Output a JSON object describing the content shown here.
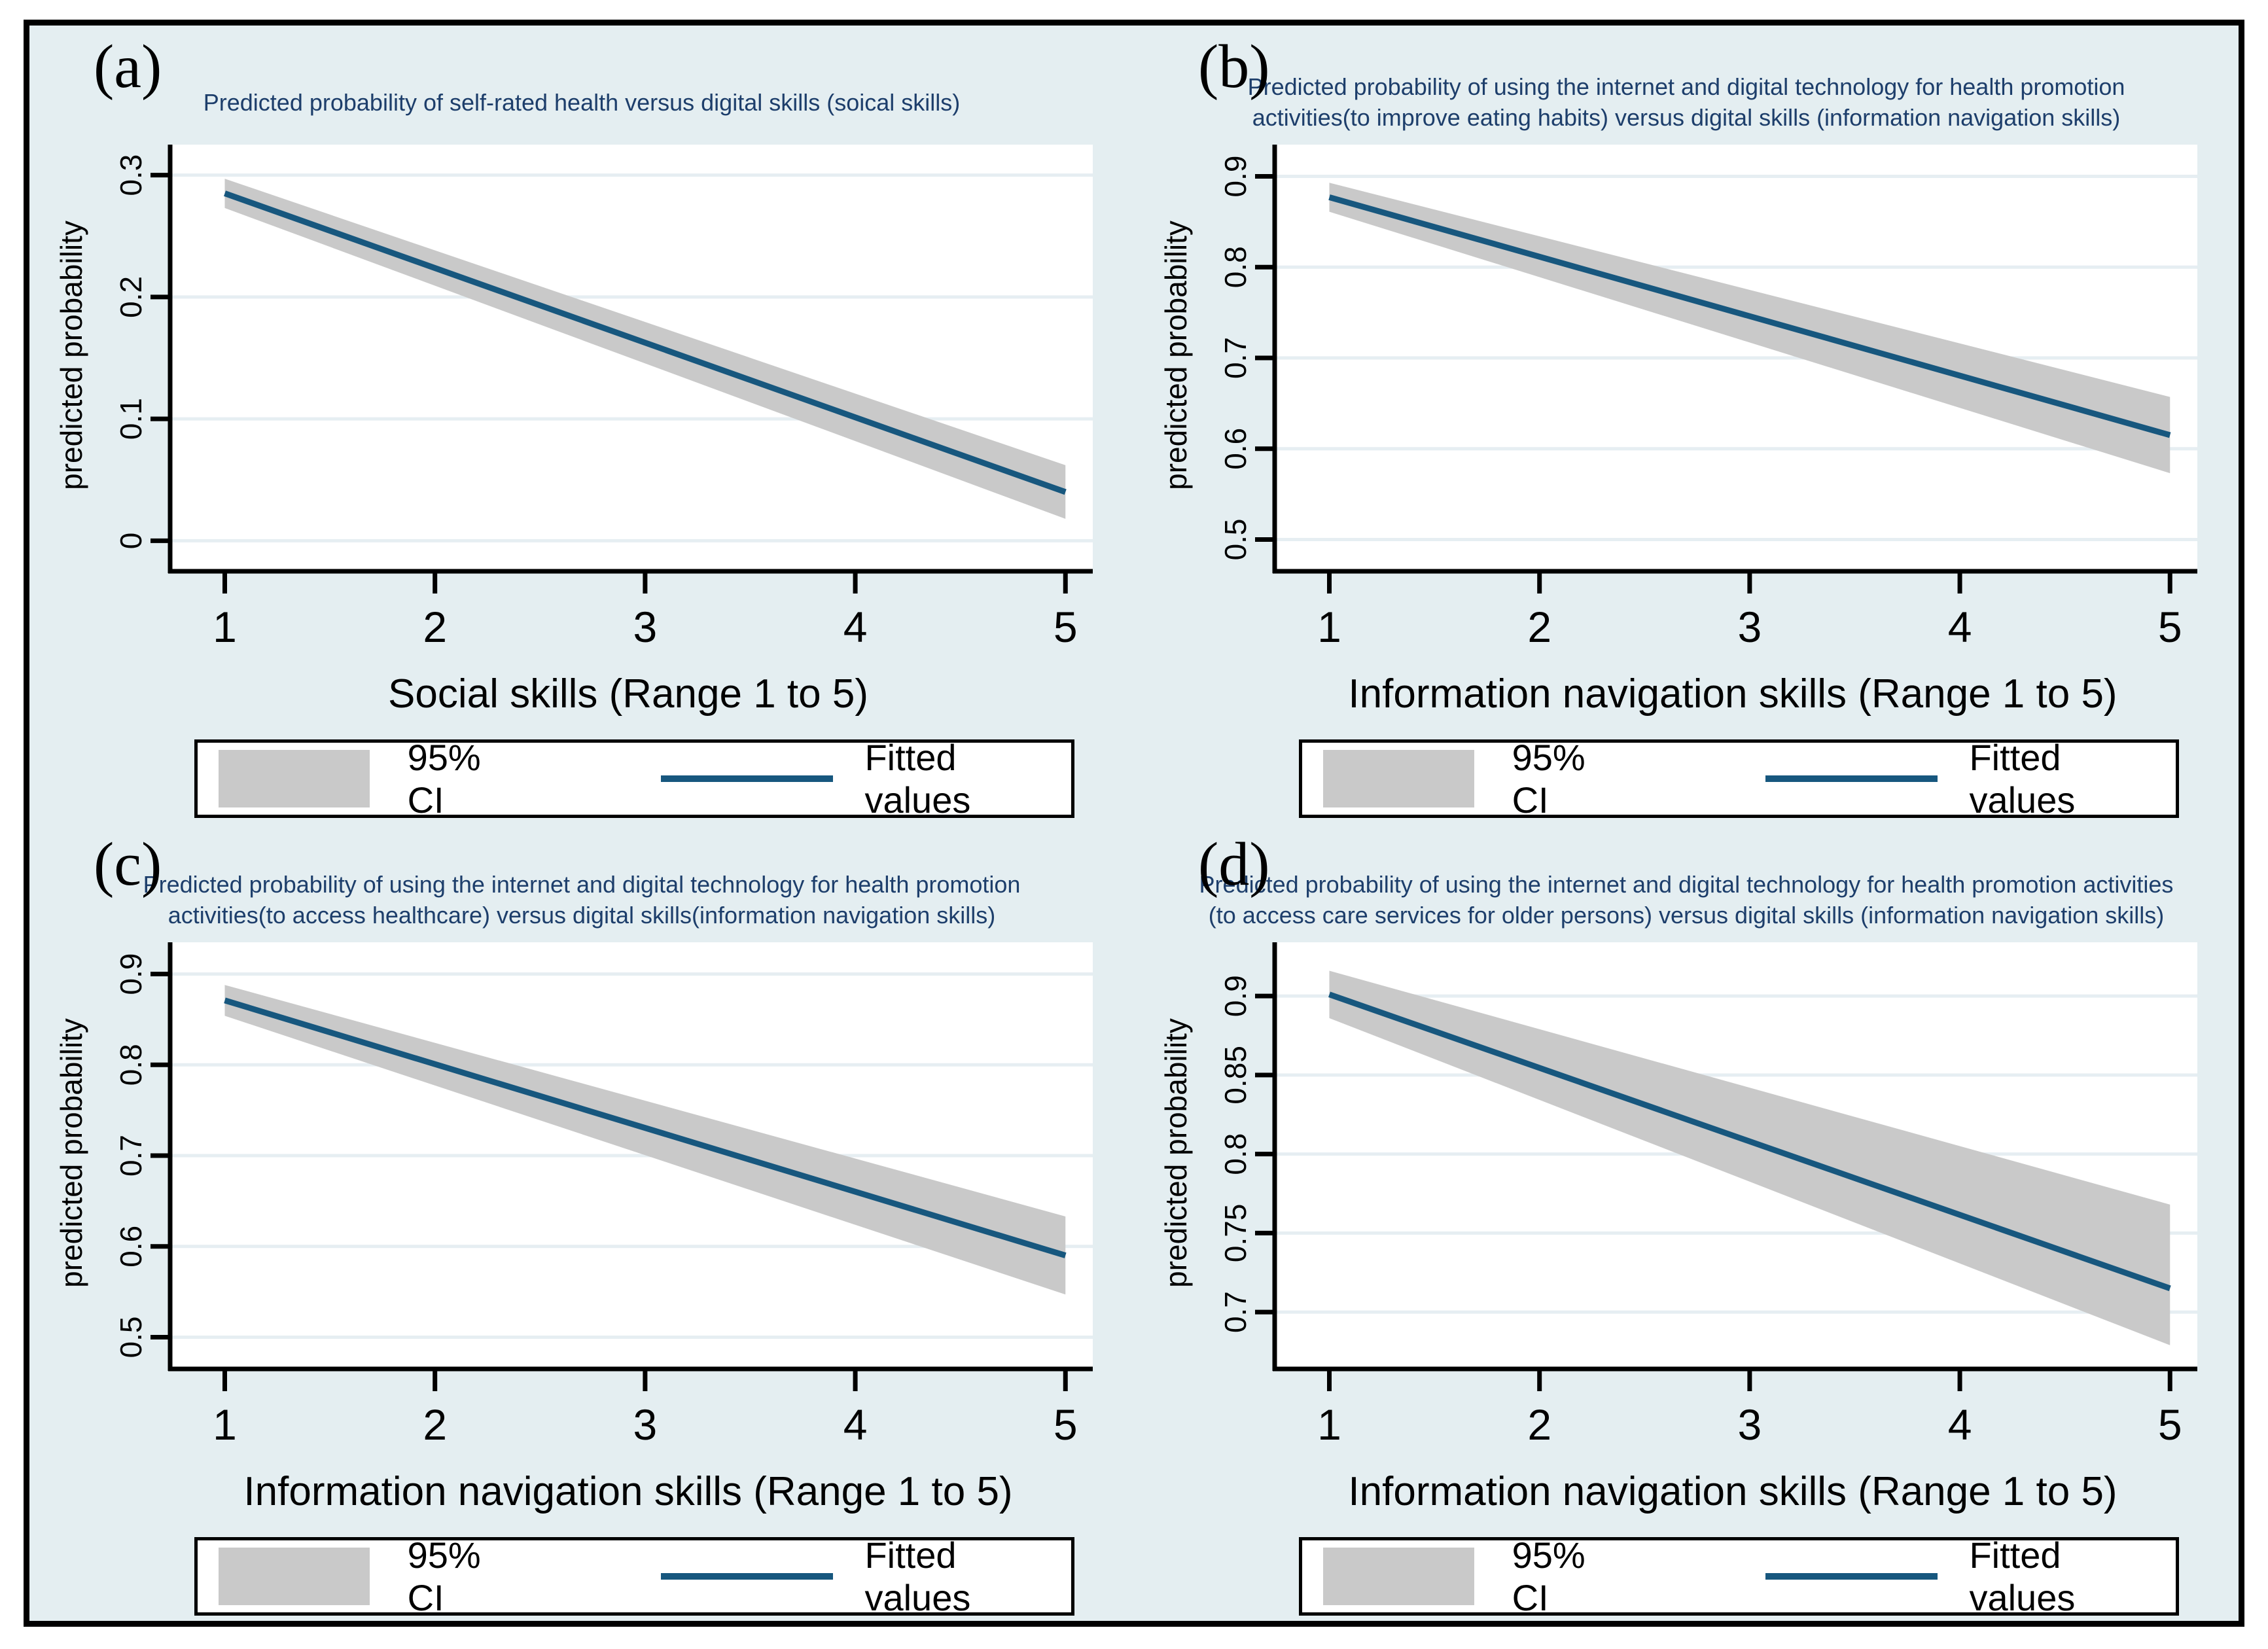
{
  "figure": {
    "panel_letters": [
      "(a)",
      "(b)",
      "(c)",
      "(d)"
    ],
    "legend": {
      "ci_label": "95% CI",
      "fit_label": "Fitted values",
      "position": "bottom"
    },
    "colors": {
      "background": "#e4eef1",
      "plot_bg": "#ffffff",
      "grid": "#e6eef2",
      "line": "#17577e",
      "ci_band": "#c9c9c9",
      "title": "#1d3e6b",
      "axis": "#000000"
    }
  },
  "chart_data": [
    {
      "type": "line",
      "panel": "a",
      "title_lines": [
        "Predicted probability of self-rated health versus digital skills (soical skills)"
      ],
      "xlabel": "Social skills (Range 1 to 5)",
      "ylabel": "predicted probability",
      "xlim": [
        0.74,
        5.13
      ],
      "ylim": [
        -0.025,
        0.325
      ],
      "xticks": [
        1,
        2,
        3,
        4,
        5
      ],
      "yticks": [
        0,
        0.1,
        0.2,
        0.3
      ],
      "ytick_labels": [
        "0",
        "0.1",
        "0.2",
        "0.3"
      ],
      "grid": true,
      "fitted": {
        "name": "Fitted values",
        "x": [
          1,
          5
        ],
        "y": [
          0.285,
          0.04
        ]
      },
      "ci95": {
        "name": "95% CI",
        "x": [
          1,
          5
        ],
        "low": [
          0.273,
          0.018
        ],
        "high": [
          0.297,
          0.062
        ]
      }
    },
    {
      "type": "line",
      "panel": "b",
      "title_lines": [
        "Predicted probability of using the internet and digital technology for health promotion",
        "activities(to improve eating habits) versus digital skills (information navigation skills)"
      ],
      "xlabel": "Information navigation skills (Range 1 to 5)",
      "ylabel": "predicted probability",
      "xlim": [
        0.74,
        5.13
      ],
      "ylim": [
        0.465,
        0.935
      ],
      "xticks": [
        1,
        2,
        3,
        4,
        5
      ],
      "yticks": [
        0.5,
        0.6,
        0.7,
        0.8,
        0.9
      ],
      "ytick_labels": [
        "0.5",
        "0.6",
        "0.7",
        "0.8",
        "0.9"
      ],
      "grid": true,
      "fitted": {
        "name": "Fitted values",
        "x": [
          1,
          5
        ],
        "y": [
          0.877,
          0.615
        ]
      },
      "ci95": {
        "name": "95% CI",
        "x": [
          1,
          5
        ],
        "low": [
          0.861,
          0.573
        ],
        "high": [
          0.893,
          0.657
        ]
      }
    },
    {
      "type": "line",
      "panel": "c",
      "title_lines": [
        "Predicted probability of using the internet and digital technology for health promotion",
        "activities(to access healthcare) versus digital skills(information navigation skills)"
      ],
      "xlabel": "Information navigation skills (Range 1 to 5)",
      "ylabel": "predicted probability",
      "xlim": [
        0.74,
        5.13
      ],
      "ylim": [
        0.465,
        0.935
      ],
      "xticks": [
        1,
        2,
        3,
        4,
        5
      ],
      "yticks": [
        0.5,
        0.6,
        0.7,
        0.8,
        0.9
      ],
      "ytick_labels": [
        "0.5",
        "0.6",
        "0.7",
        "0.8",
        "0.9"
      ],
      "grid": true,
      "fitted": {
        "name": "Fitted values",
        "x": [
          1,
          5
        ],
        "y": [
          0.871,
          0.59
        ]
      },
      "ci95": {
        "name": "95% CI",
        "x": [
          1,
          5
        ],
        "low": [
          0.854,
          0.547
        ],
        "high": [
          0.888,
          0.633
        ]
      }
    },
    {
      "type": "line",
      "panel": "d",
      "title_lines": [
        "Predicted probability of using the internet and digital technology for health promotion activities",
        "(to access care services for older persons) versus digital skills (information navigation skills)"
      ],
      "xlabel": "Information navigation skills (Range 1 to 5)",
      "ylabel": "predicted probability",
      "xlim": [
        0.74,
        5.13
      ],
      "ylim": [
        0.664,
        0.934
      ],
      "xticks": [
        1,
        2,
        3,
        4,
        5
      ],
      "yticks": [
        0.7,
        0.75,
        0.8,
        0.85,
        0.9
      ],
      "ytick_labels": [
        "0.7",
        "0.75",
        "0.8",
        "0.85",
        "0.9"
      ],
      "grid": true,
      "fitted": {
        "name": "Fitted values",
        "x": [
          1,
          5
        ],
        "y": [
          0.901,
          0.715
        ]
      },
      "ci95": {
        "name": "95% CI",
        "x": [
          1,
          5
        ],
        "low": [
          0.886,
          0.679
        ],
        "high": [
          0.916,
          0.768
        ]
      }
    }
  ]
}
